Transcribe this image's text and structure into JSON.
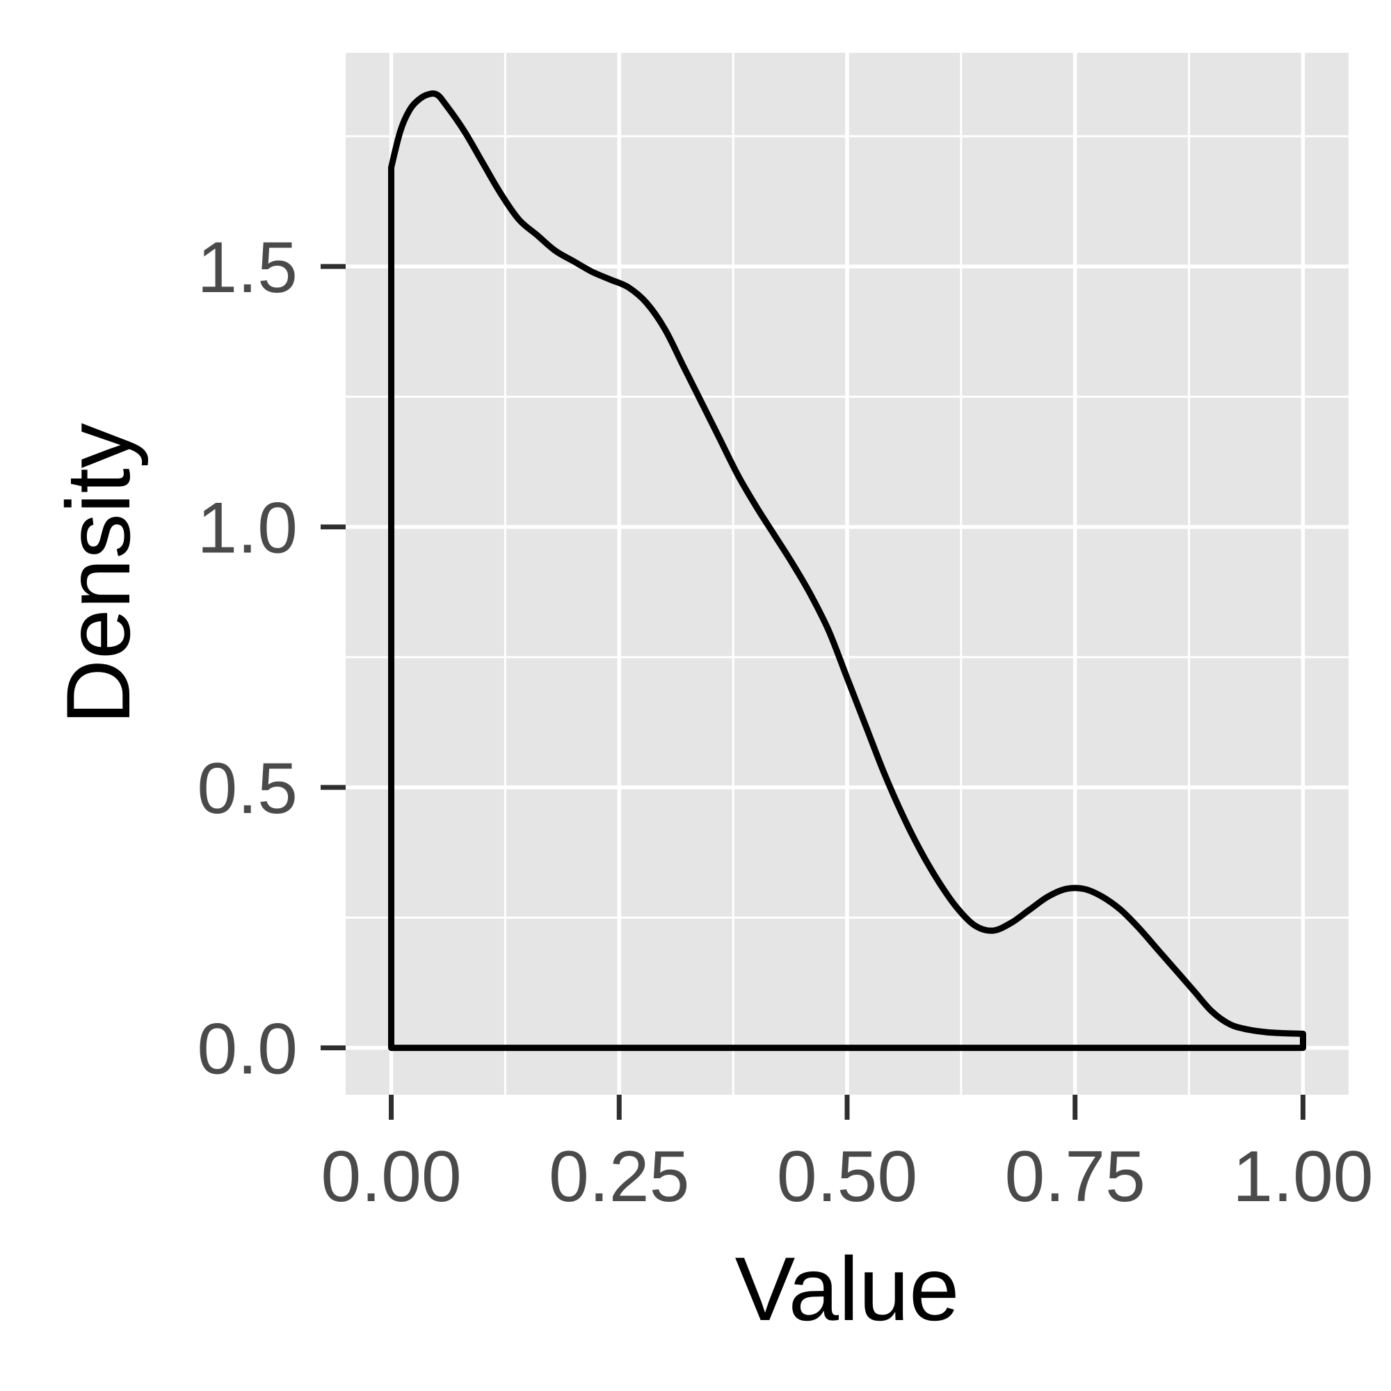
{
  "chart_data": {
    "type": "line",
    "title": "",
    "xlabel": "Value",
    "ylabel": "Density",
    "xlim": [
      -0.05,
      1.05
    ],
    "ylim": [
      -0.09,
      1.91
    ],
    "x_ticks": [
      0.0,
      0.25,
      0.5,
      0.75,
      1.0
    ],
    "x_tick_labels": [
      "0.00",
      "0.25",
      "0.50",
      "0.75",
      "1.00"
    ],
    "y_ticks": [
      0.0,
      0.5,
      1.0,
      1.5
    ],
    "y_tick_labels": [
      "0.0",
      "0.5",
      "1.0",
      "1.5"
    ],
    "grid": true,
    "legend": "none",
    "series": [
      {
        "x": [
          0.0,
          0.01,
          0.02,
          0.03,
          0.04,
          0.05,
          0.06,
          0.08,
          0.1,
          0.12,
          0.14,
          0.16,
          0.18,
          0.2,
          0.22,
          0.24,
          0.26,
          0.28,
          0.3,
          0.32,
          0.34,
          0.36,
          0.38,
          0.4,
          0.42,
          0.44,
          0.46,
          0.48,
          0.5,
          0.52,
          0.54,
          0.56,
          0.58,
          0.6,
          0.62,
          0.64,
          0.66,
          0.68,
          0.7,
          0.72,
          0.74,
          0.76,
          0.78,
          0.8,
          0.82,
          0.84,
          0.86,
          0.88,
          0.9,
          0.92,
          0.94,
          0.96,
          0.98,
          1.0
        ],
        "y": [
          1.69,
          1.76,
          1.8,
          1.82,
          1.83,
          1.83,
          1.81,
          1.76,
          1.7,
          1.64,
          1.59,
          1.56,
          1.53,
          1.51,
          1.49,
          1.475,
          1.46,
          1.43,
          1.38,
          1.31,
          1.24,
          1.17,
          1.1,
          1.04,
          0.985,
          0.93,
          0.87,
          0.8,
          0.71,
          0.62,
          0.53,
          0.45,
          0.38,
          0.32,
          0.27,
          0.235,
          0.225,
          0.24,
          0.265,
          0.29,
          0.305,
          0.305,
          0.29,
          0.265,
          0.23,
          0.19,
          0.15,
          0.11,
          0.07,
          0.045,
          0.035,
          0.03,
          0.028,
          0.027
        ]
      }
    ]
  }
}
